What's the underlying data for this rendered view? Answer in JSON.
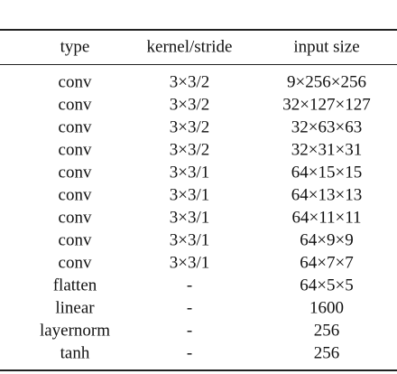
{
  "table": {
    "columns": [
      "type",
      "kernel/stride",
      "input size"
    ],
    "rows": [
      [
        "conv",
        "3×3/2",
        "9×256×256"
      ],
      [
        "conv",
        "3×3/2",
        "32×127×127"
      ],
      [
        "conv",
        "3×3/2",
        "32×63×63"
      ],
      [
        "conv",
        "3×3/2",
        "32×31×31"
      ],
      [
        "conv",
        "3×3/1",
        "64×15×15"
      ],
      [
        "conv",
        "3×3/1",
        "64×13×13"
      ],
      [
        "conv",
        "3×3/1",
        "64×11×11"
      ],
      [
        "conv",
        "3×3/1",
        "64×9×9"
      ],
      [
        "conv",
        "3×3/1",
        "64×7×7"
      ],
      [
        "flatten",
        "-",
        "64×5×5"
      ],
      [
        "linear",
        "-",
        "1600"
      ],
      [
        "layernorm",
        "-",
        "256"
      ],
      [
        "tanh",
        "-",
        "256"
      ]
    ]
  }
}
